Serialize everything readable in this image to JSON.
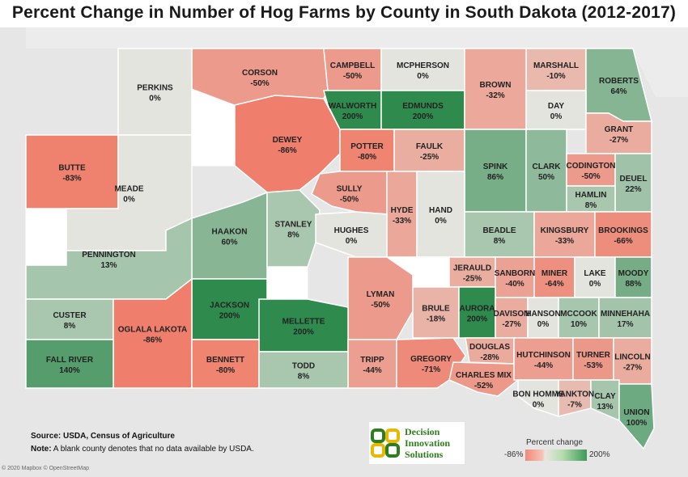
{
  "title": "Percent Change in Number of Hog Farms by County in South Dakota (2012-2017)",
  "source_label": "Source: USDA, Census of Agriculture",
  "note_label": "Note:",
  "note_text": "A blank county denotes that no data available by USDA.",
  "attribution": "© 2020 Mapbox © OpenStreetMap",
  "logo": {
    "line1": "Decision",
    "line2": "Innovation",
    "line3": "Solutions"
  },
  "legend": {
    "title": "Percent change",
    "min": "-86%",
    "max": "200%"
  },
  "colors": {
    "min": "#ef7f6c",
    "mid": "#e4e4df",
    "max": "#2f8a4e",
    "blank": "#ffffff",
    "background": "#e6e6e6"
  },
  "counties": [
    {
      "name": "CORSON",
      "value": "-50%",
      "change": -50
    },
    {
      "name": "CAMPBELL",
      "value": "-50%",
      "change": -50
    },
    {
      "name": "MCPHERSON",
      "value": "0%",
      "change": 0
    },
    {
      "name": "MARSHALL",
      "value": "-10%",
      "change": -10
    },
    {
      "name": "ROBERTS",
      "value": "64%",
      "change": 64
    },
    {
      "name": "PERKINS",
      "value": "0%",
      "change": 0
    },
    {
      "name": "WALWORTH",
      "value": "200%",
      "change": 200
    },
    {
      "name": "EDMUNDS",
      "value": "200%",
      "change": 200
    },
    {
      "name": "BROWN",
      "value": "-32%",
      "change": -32
    },
    {
      "name": "DAY",
      "value": "0%",
      "change": 0
    },
    {
      "name": "GRANT",
      "value": "-27%",
      "change": -27
    },
    {
      "name": "BUTTE",
      "value": "-83%",
      "change": -83
    },
    {
      "name": "DEWEY",
      "value": "-86%",
      "change": -86
    },
    {
      "name": "POTTER",
      "value": "-80%",
      "change": -80
    },
    {
      "name": "FAULK",
      "value": "-25%",
      "change": -25
    },
    {
      "name": "SPINK",
      "value": "86%",
      "change": 86
    },
    {
      "name": "CLARK",
      "value": "50%",
      "change": 50
    },
    {
      "name": "CODINGTON",
      "value": "-50%",
      "change": -50
    },
    {
      "name": "DEUEL",
      "value": "22%",
      "change": 22
    },
    {
      "name": "HAMLIN",
      "value": "8%",
      "change": 8
    },
    {
      "name": "SULLY",
      "value": "-50%",
      "change": -50
    },
    {
      "name": "HYDE",
      "value": "-33%",
      "change": -33
    },
    {
      "name": "HAND",
      "value": "0%",
      "change": 0
    },
    {
      "name": "MEADE",
      "value": "0%",
      "change": 0
    },
    {
      "name": "HAAKON",
      "value": "60%",
      "change": 60
    },
    {
      "name": "STANLEY",
      "value": "8%",
      "change": 8
    },
    {
      "name": "HUGHES",
      "value": "0%",
      "change": 0
    },
    {
      "name": "BEADLE",
      "value": "8%",
      "change": 8
    },
    {
      "name": "KINGSBURY",
      "value": "-33%",
      "change": -33
    },
    {
      "name": "BROOKINGS",
      "value": "-66%",
      "change": -66
    },
    {
      "name": "PENNINGTON",
      "value": "13%",
      "change": 13
    },
    {
      "name": "JERAULD",
      "value": "-25%",
      "change": -25
    },
    {
      "name": "SANBORN",
      "value": "-40%",
      "change": -40
    },
    {
      "name": "MINER",
      "value": "-64%",
      "change": -64
    },
    {
      "name": "LAKE",
      "value": "0%",
      "change": 0
    },
    {
      "name": "MOODY",
      "value": "88%",
      "change": 88
    },
    {
      "name": "LYMAN",
      "value": "-50%",
      "change": -50
    },
    {
      "name": "CUSTER",
      "value": "8%",
      "change": 8
    },
    {
      "name": "JACKSON",
      "value": "200%",
      "change": 200
    },
    {
      "name": "MELLETTE",
      "value": "200%",
      "change": 200
    },
    {
      "name": "BRULE",
      "value": "-18%",
      "change": -18
    },
    {
      "name": "AURORA",
      "value": "200%",
      "change": 200
    },
    {
      "name": "DAVISON",
      "value": "-27%",
      "change": -27
    },
    {
      "name": "HANSON",
      "value": "0%",
      "change": 0
    },
    {
      "name": "MCCOOK",
      "value": "10%",
      "change": 10
    },
    {
      "name": "MINNEHAHA",
      "value": "17%",
      "change": 17
    },
    {
      "name": "OGLALA LAKOTA",
      "value": "-86%",
      "change": -86
    },
    {
      "name": "FALL RIVER",
      "value": "140%",
      "change": 140
    },
    {
      "name": "TRIPP",
      "value": "-44%",
      "change": -44
    },
    {
      "name": "BENNETT",
      "value": "-80%",
      "change": -80
    },
    {
      "name": "TODD",
      "value": "8%",
      "change": 8
    },
    {
      "name": "GREGORY",
      "value": "-71%",
      "change": -71
    },
    {
      "name": "DOUGLAS",
      "value": "-28%",
      "change": -28
    },
    {
      "name": "CHARLES MIX",
      "value": "-52%",
      "change": -52
    },
    {
      "name": "HUTCHINSON",
      "value": "-44%",
      "change": -44
    },
    {
      "name": "TURNER",
      "value": "-53%",
      "change": -53
    },
    {
      "name": "LINCOLN",
      "value": "-27%",
      "change": -27
    },
    {
      "name": "BON HOMME",
      "value": "0%",
      "change": 0
    },
    {
      "name": "YANKTON",
      "value": "-7%",
      "change": -7
    },
    {
      "name": "CLAY",
      "value": "13%",
      "change": 13
    },
    {
      "name": "UNION",
      "value": "100%",
      "change": 100
    }
  ]
}
